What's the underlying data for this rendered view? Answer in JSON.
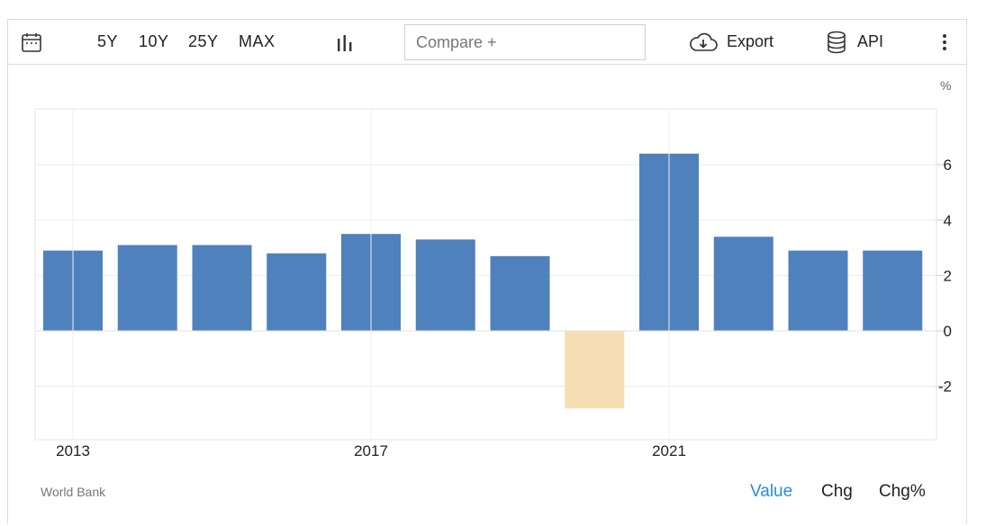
{
  "toolbar": {
    "calendar_icon": "calendar-icon",
    "ranges": [
      "5Y",
      "10Y",
      "25Y",
      "MAX"
    ],
    "chart_type_icon": "bar-chart-icon",
    "compare_placeholder": "Compare +",
    "export_label": "Export",
    "export_icon": "cloud-download-icon",
    "api_label": "API",
    "api_icon": "database-icon",
    "menu_icon": "kebab-menu-icon"
  },
  "chart_data": {
    "type": "bar",
    "unit": "%",
    "categories": [
      2013,
      2014,
      2015,
      2016,
      2017,
      2018,
      2019,
      2020,
      2021,
      2022,
      2023,
      2024
    ],
    "values": [
      2.9,
      3.1,
      3.1,
      2.8,
      3.5,
      3.3,
      2.7,
      -2.8,
      6.4,
      3.4,
      2.9,
      2.9
    ],
    "x_tick_labels": [
      "2013",
      "2017",
      "2021"
    ],
    "y_ticks": [
      -2,
      0,
      2,
      4,
      6
    ],
    "ylim": [
      -4,
      8
    ],
    "y_axis_position": "right",
    "grid": true,
    "colors": {
      "positive": "#4f81bd",
      "negative": "#f5deb3"
    }
  },
  "footer": {
    "source": "World Bank",
    "modes": [
      "Value",
      "Chg",
      "Chg%"
    ],
    "active_mode_color": "#2a8ae0"
  }
}
